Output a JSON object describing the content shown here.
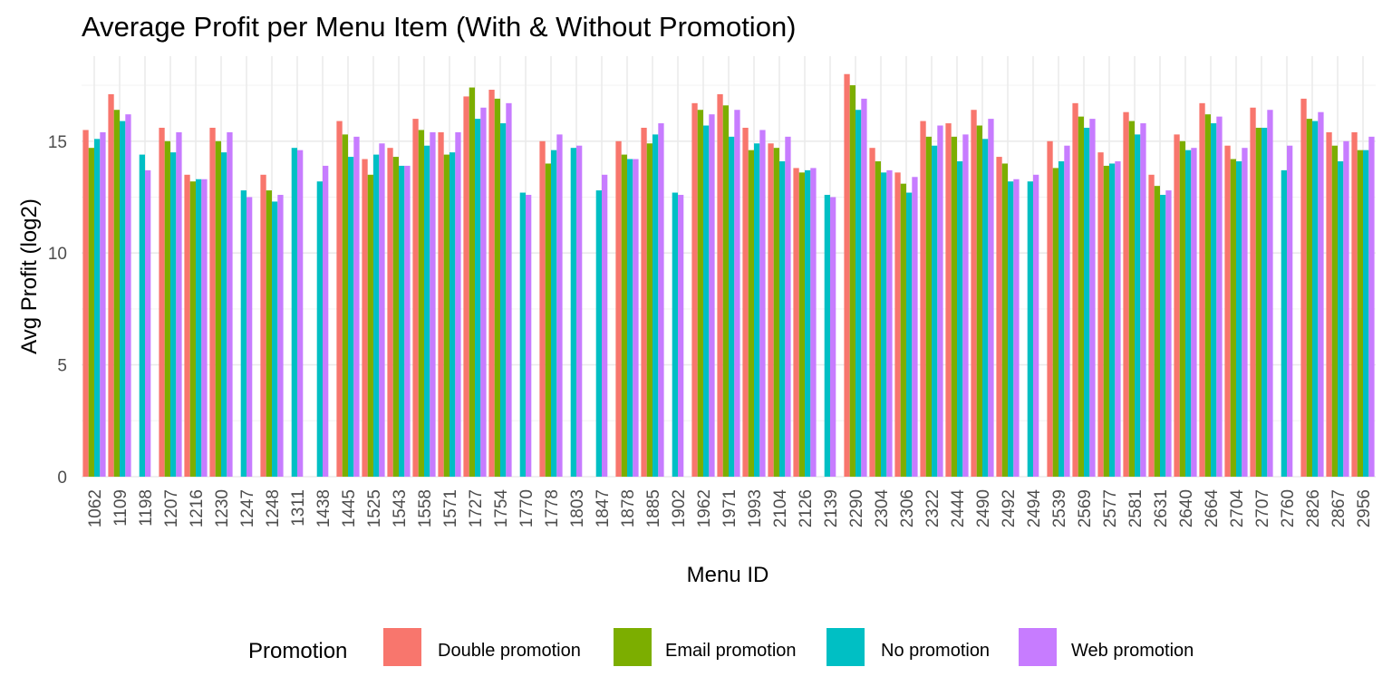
{
  "chart_data": {
    "type": "bar",
    "title": "Average Profit per Menu Item (With & Without Promotion)",
    "xlabel": "Menu ID",
    "ylabel": "Avg Profit (log2)",
    "ylim": [
      0,
      18.8
    ],
    "yticks": [
      0,
      5,
      10,
      15
    ],
    "grid": true,
    "legend_position": "bottom",
    "legend_title": "Promotion",
    "categories": [
      "1062",
      "1109",
      "1198",
      "1207",
      "1216",
      "1230",
      "1247",
      "1248",
      "1311",
      "1438",
      "1445",
      "1525",
      "1543",
      "1558",
      "1571",
      "1727",
      "1754",
      "1770",
      "1778",
      "1803",
      "1847",
      "1878",
      "1885",
      "1902",
      "1962",
      "1971",
      "1993",
      "2104",
      "2126",
      "2139",
      "2290",
      "2304",
      "2306",
      "2322",
      "2444",
      "2490",
      "2492",
      "2494",
      "2539",
      "2569",
      "2577",
      "2581",
      "2631",
      "2640",
      "2664",
      "2704",
      "2707",
      "2760",
      "2826",
      "2867",
      "2956"
    ],
    "series": [
      {
        "name": "Double promotion",
        "color": "#F8766D",
        "values": [
          15.5,
          17.1,
          null,
          15.6,
          13.5,
          15.6,
          null,
          13.5,
          null,
          null,
          15.9,
          14.2,
          14.7,
          16.0,
          15.4,
          17.0,
          17.3,
          null,
          15.0,
          null,
          null,
          15.0,
          15.6,
          null,
          16.7,
          17.1,
          15.6,
          14.9,
          13.8,
          null,
          18.0,
          14.7,
          13.6,
          15.9,
          15.8,
          16.4,
          14.3,
          null,
          15.0,
          16.7,
          14.5,
          16.3,
          13.5,
          15.3,
          16.7,
          14.8,
          16.5,
          null,
          16.9,
          15.4,
          15.4
        ]
      },
      {
        "name": "Email promotion",
        "color": "#7CAE00",
        "values": [
          14.7,
          16.4,
          null,
          15.0,
          13.2,
          15.0,
          null,
          12.8,
          null,
          null,
          15.3,
          13.5,
          14.3,
          15.5,
          14.4,
          17.4,
          16.9,
          null,
          14.0,
          null,
          null,
          14.4,
          14.9,
          null,
          16.4,
          16.6,
          14.6,
          14.7,
          13.6,
          null,
          17.5,
          14.1,
          13.1,
          15.2,
          15.2,
          15.7,
          14.0,
          null,
          13.8,
          16.1,
          13.9,
          15.9,
          13.0,
          15.0,
          16.2,
          14.2,
          15.6,
          null,
          16.0,
          14.8,
          14.6
        ]
      },
      {
        "name": "No promotion",
        "color": "#00BFC4",
        "values": [
          15.1,
          15.9,
          14.4,
          14.5,
          13.3,
          14.5,
          12.8,
          12.3,
          14.7,
          13.2,
          14.3,
          14.4,
          13.9,
          14.8,
          14.5,
          16.0,
          15.8,
          12.7,
          14.6,
          14.7,
          12.8,
          14.2,
          15.3,
          12.7,
          15.7,
          15.2,
          14.9,
          14.1,
          13.7,
          12.6,
          16.4,
          13.6,
          12.7,
          14.8,
          14.1,
          15.1,
          13.2,
          13.2,
          14.1,
          15.6,
          14.0,
          15.3,
          12.6,
          14.6,
          15.8,
          14.1,
          15.6,
          13.7,
          15.9,
          14.1,
          14.6
        ]
      },
      {
        "name": "Web promotion",
        "color": "#C77CFF",
        "values": [
          15.4,
          16.2,
          13.7,
          15.4,
          13.3,
          15.4,
          12.5,
          12.6,
          14.6,
          13.9,
          15.2,
          14.9,
          13.9,
          15.4,
          15.4,
          16.5,
          16.7,
          12.6,
          15.3,
          14.8,
          13.5,
          14.2,
          15.8,
          12.6,
          16.2,
          16.4,
          15.5,
          15.2,
          13.8,
          12.5,
          16.9,
          13.7,
          13.4,
          15.7,
          15.3,
          16.0,
          13.3,
          13.5,
          14.8,
          16.0,
          14.1,
          15.8,
          12.8,
          14.7,
          16.1,
          14.7,
          16.4,
          14.8,
          16.3,
          15.0,
          15.2
        ]
      }
    ]
  }
}
